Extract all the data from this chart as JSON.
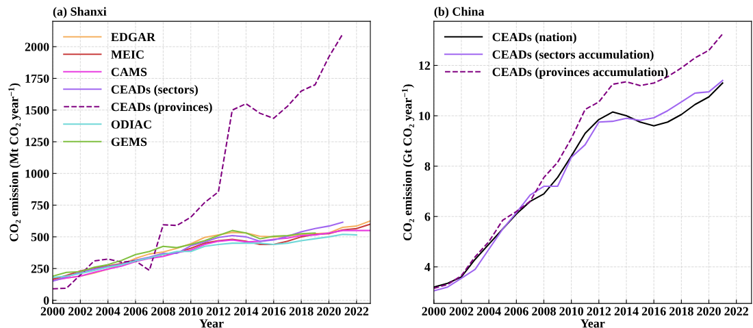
{
  "chart_data": [
    {
      "type": "line",
      "title": "(a) Shanxi",
      "xlabel": "Year",
      "ylabel": "CO₂ emission (Mt CO₂ year$^{−1}$)",
      "xlim": [
        2000,
        2023
      ],
      "ylim": [
        -25,
        2200
      ],
      "xticks": [
        2000,
        2002,
        2004,
        2006,
        2008,
        2010,
        2012,
        2014,
        2016,
        2018,
        2020,
        2022
      ],
      "yticks": [
        0,
        250,
        500,
        750,
        1000,
        1250,
        1500,
        1750,
        2000
      ],
      "grid": true,
      "legend": "top left",
      "marker": "none",
      "series": [
        {
          "name": "EDGAR",
          "color": "#f5b060",
          "line_style": "solid",
          "x": [
            2000,
            2001,
            2002,
            2003,
            2004,
            2005,
            2006,
            2007,
            2008,
            2009,
            2010,
            2011,
            2012,
            2013,
            2014,
            2015,
            2016,
            2017,
            2018,
            2019,
            2020,
            2021,
            2022,
            2023
          ],
          "values": [
            165,
            175,
            190,
            215,
            245,
            285,
            330,
            365,
            380,
            410,
            445,
            495,
            515,
            535,
            530,
            505,
            500,
            505,
            520,
            525,
            530,
            575,
            585,
            625
          ]
        },
        {
          "name": "MEIC",
          "color": "#c83c3c",
          "line_style": "solid",
          "x": [
            2000,
            2001,
            2002,
            2003,
            2004,
            2005,
            2006,
            2007,
            2008,
            2009,
            2010,
            2011,
            2012,
            2013,
            2014,
            2015,
            2016,
            2017,
            2018,
            2019,
            2020,
            2021,
            2022,
            2023
          ],
          "values": [
            165,
            195,
            230,
            255,
            270,
            290,
            315,
            335,
            360,
            375,
            410,
            450,
            470,
            480,
            465,
            440,
            440,
            465,
            500,
            520,
            525,
            555,
            565,
            600
          ]
        },
        {
          "name": "CAMS",
          "color": "#e83ce0",
          "line_style": "solid",
          "x": [
            2000,
            2001,
            2002,
            2003,
            2004,
            2005,
            2006,
            2007,
            2008,
            2009,
            2010,
            2011,
            2012,
            2013,
            2014,
            2015,
            2016,
            2017,
            2018,
            2019,
            2020,
            2021,
            2022,
            2023
          ],
          "values": [
            155,
            175,
            190,
            220,
            245,
            270,
            305,
            330,
            345,
            375,
            395,
            440,
            465,
            475,
            460,
            465,
            480,
            490,
            510,
            515,
            530,
            550,
            550,
            550
          ]
        },
        {
          "name": "CEADs (sectors)",
          "color": "#a066f0",
          "line_style": "solid",
          "x": [
            2000,
            2001,
            2002,
            2003,
            2004,
            2005,
            2006,
            2007,
            2008,
            2009,
            2010,
            2011,
            2012,
            2013,
            2014,
            2015,
            2016,
            2017,
            2018,
            2019,
            2020,
            2021
          ],
          "values": [
            150,
            185,
            220,
            245,
            265,
            285,
            315,
            340,
            370,
            370,
            430,
            460,
            495,
            510,
            500,
            465,
            475,
            505,
            540,
            565,
            585,
            615
          ]
        },
        {
          "name": "CEADs (provinces)",
          "color": "#800080",
          "line_style": "dashed",
          "x": [
            2000,
            2001,
            2002,
            2003,
            2004,
            2005,
            2006,
            2007,
            2008,
            2009,
            2010,
            2011,
            2012,
            2013,
            2014,
            2015,
            2016,
            2017,
            2018,
            2019,
            2020,
            2021
          ],
          "values": [
            90,
            95,
            200,
            310,
            325,
            300,
            310,
            235,
            595,
            590,
            655,
            770,
            855,
            1500,
            1550,
            1475,
            1435,
            1530,
            1650,
            1700,
            1920,
            2100
          ]
        },
        {
          "name": "ODIAC",
          "color": "#70d8d8",
          "line_style": "solid",
          "x": [
            2000,
            2001,
            2002,
            2003,
            2004,
            2005,
            2006,
            2007,
            2008,
            2009,
            2010,
            2011,
            2012,
            2013,
            2014,
            2015,
            2016,
            2017,
            2018,
            2019,
            2020,
            2021,
            2022
          ],
          "values": [
            180,
            190,
            210,
            235,
            260,
            280,
            310,
            335,
            360,
            385,
            385,
            425,
            440,
            450,
            450,
            450,
            440,
            450,
            470,
            485,
            500,
            520,
            515
          ]
        },
        {
          "name": "GEMS",
          "color": "#80c040",
          "line_style": "solid",
          "x": [
            2000,
            2001,
            2002,
            2003,
            2004,
            2005,
            2006,
            2007,
            2008,
            2009,
            2010,
            2011,
            2012,
            2013,
            2014,
            2015,
            2016,
            2017,
            2018,
            2019
          ],
          "values": [
            190,
            220,
            225,
            260,
            280,
            315,
            360,
            385,
            425,
            415,
            440,
            470,
            510,
            550,
            530,
            485,
            505,
            510,
            525,
            530
          ]
        }
      ]
    },
    {
      "type": "line",
      "title": "(b) China",
      "xlabel": "Year",
      "ylabel": "CO₂ emission (Gt CO₂ year$^{−1}$)",
      "xlim": [
        2000,
        2023.1
      ],
      "ylim": [
        2.55,
        13.75
      ],
      "xticks": [
        2000,
        2002,
        2004,
        2006,
        2008,
        2010,
        2012,
        2014,
        2016,
        2018,
        2020,
        2022
      ],
      "yticks": [
        4,
        6,
        8,
        10,
        12
      ],
      "grid": true,
      "legend": "top left",
      "marker": "none",
      "series": [
        {
          "name": "CEADs (nation)",
          "color": "#000000",
          "line_style": "solid",
          "x": [
            2000,
            2001,
            2002,
            2003,
            2004,
            2005,
            2006,
            2007,
            2008,
            2009,
            2010,
            2011,
            2012,
            2013,
            2014,
            2015,
            2016,
            2017,
            2018,
            2019,
            2020,
            2021
          ],
          "values": [
            3.2,
            3.35,
            3.6,
            4.3,
            4.9,
            5.5,
            6.1,
            6.6,
            6.9,
            7.55,
            8.4,
            9.3,
            9.85,
            10.15,
            10.0,
            9.75,
            9.6,
            9.75,
            10.05,
            10.45,
            10.75,
            11.3
          ]
        },
        {
          "name": "CEADs (sectors accumulation)",
          "color": "#a066f0",
          "line_style": "solid",
          "x": [
            2000,
            2001,
            2002,
            2003,
            2004,
            2005,
            2006,
            2007,
            2008,
            2009,
            2010,
            2011,
            2012,
            2013,
            2014,
            2015,
            2016,
            2017,
            2018,
            2019,
            2020,
            2021
          ],
          "values": [
            3.05,
            3.2,
            3.55,
            3.9,
            4.7,
            5.5,
            6.15,
            6.85,
            7.2,
            7.2,
            8.35,
            8.85,
            9.75,
            9.78,
            9.9,
            9.82,
            9.92,
            10.2,
            10.55,
            10.9,
            10.95,
            11.4
          ]
        },
        {
          "name": "CEADs (provinces accumulation)",
          "color": "#800080",
          "line_style": "dashed",
          "x": [
            2000,
            2001,
            2002,
            2003,
            2004,
            2005,
            2006,
            2007,
            2008,
            2009,
            2010,
            2011,
            2012,
            2013,
            2014,
            2015,
            2016,
            2017,
            2018,
            2019,
            2020,
            2021
          ],
          "values": [
            3.15,
            3.3,
            3.65,
            4.4,
            5.0,
            5.85,
            6.2,
            6.6,
            7.55,
            8.15,
            9.1,
            10.25,
            10.55,
            11.25,
            11.35,
            11.2,
            11.3,
            11.55,
            11.9,
            12.3,
            12.6,
            13.25
          ]
        }
      ]
    }
  ]
}
